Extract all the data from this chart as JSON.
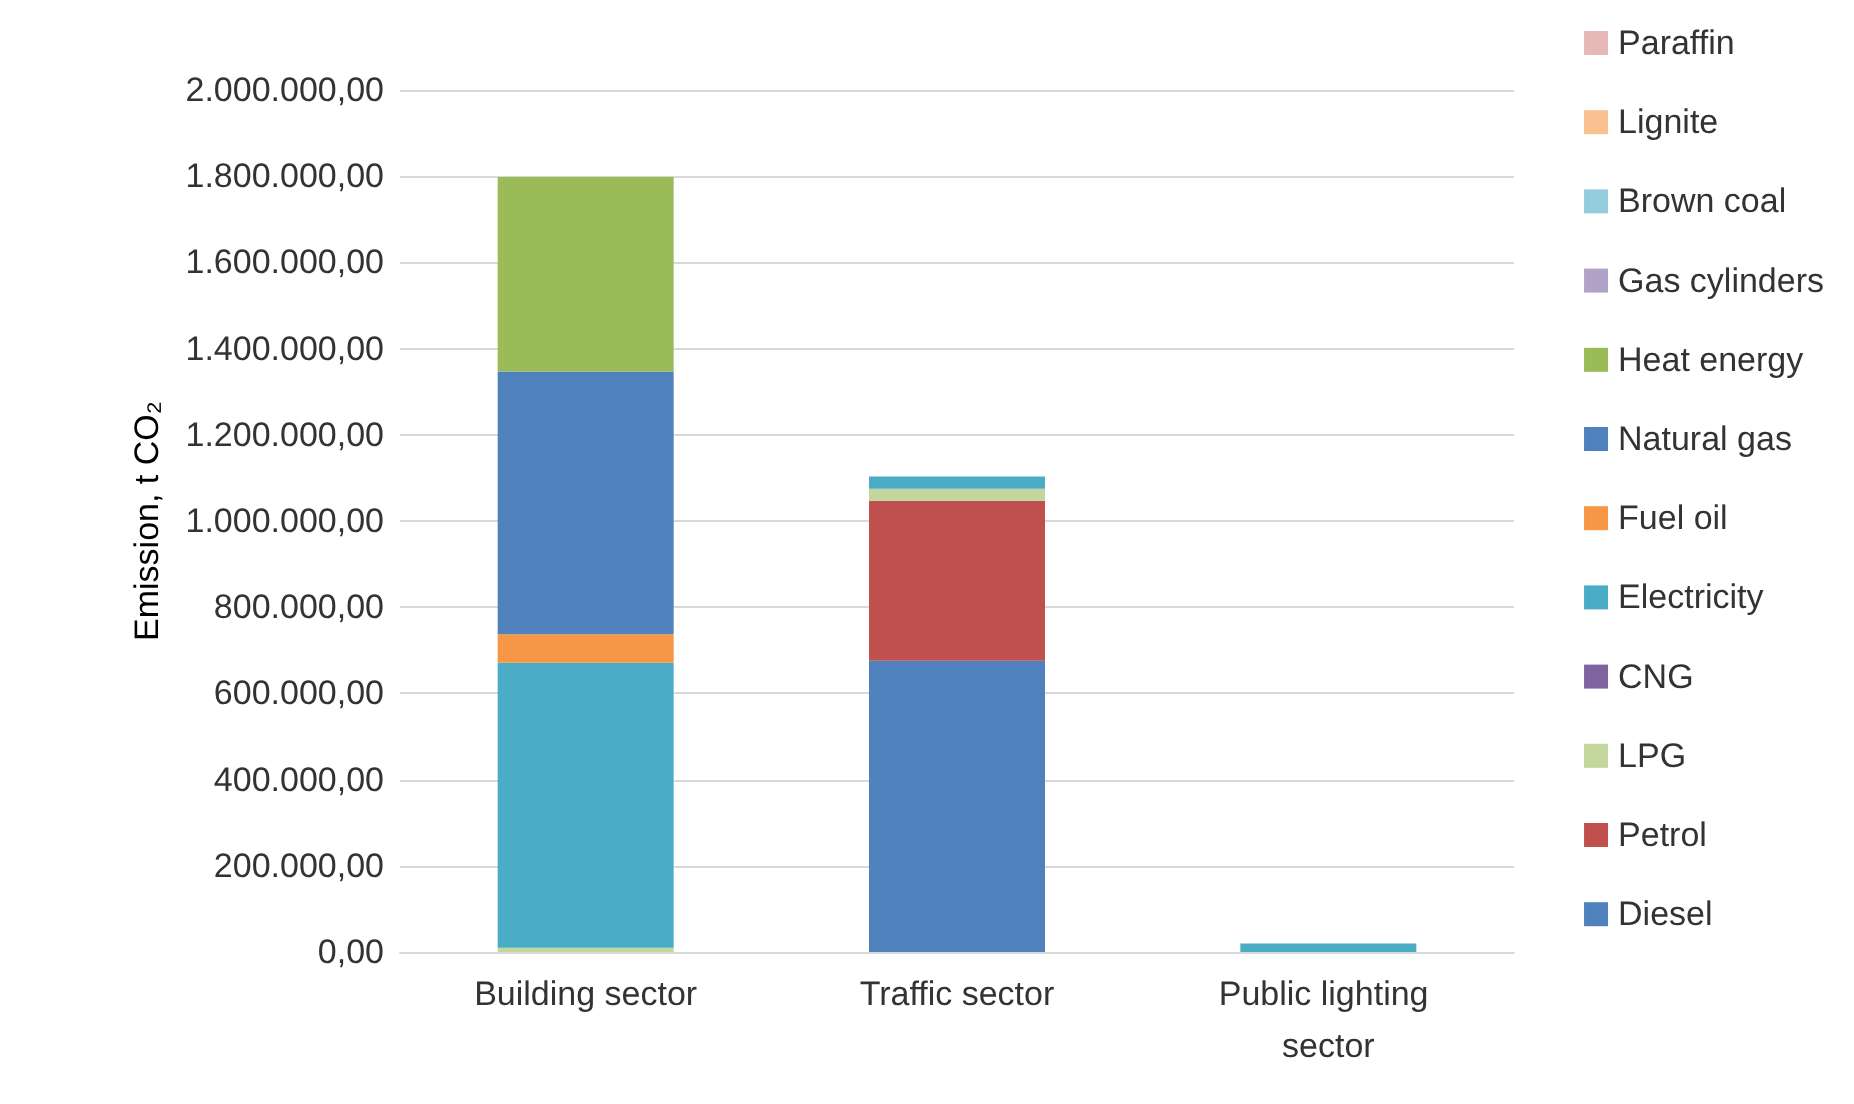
{
  "chart_data": {
    "type": "bar",
    "stacked": true,
    "ylabel": "Emission, t CO₂",
    "categories": [
      "Building sector",
      "Traffic sector",
      "Public lighting sector"
    ],
    "series": [
      {
        "name": "Diesel",
        "color": "#4f81bd",
        "values": [
          null,
          676000,
          null
        ]
      },
      {
        "name": "Petrol",
        "color": "#c0504d",
        "values": [
          null,
          371000,
          null
        ]
      },
      {
        "name": "LPG",
        "color": "#c3d69b",
        "values": [
          10000,
          28000,
          null
        ]
      },
      {
        "name": "CNG",
        "color": "#8064a2",
        "values": [
          null,
          null,
          null
        ]
      },
      {
        "name": "Electricity",
        "color": "#4bacc6",
        "values": [
          661000,
          28000,
          20000
        ]
      },
      {
        "name": "Fuel oil",
        "color": "#f79646",
        "values": [
          66000,
          null,
          null
        ]
      },
      {
        "name": "Natural gas",
        "color": "#4f81bd",
        "values": [
          610000,
          null,
          null
        ]
      },
      {
        "name": "Heat energy",
        "color": "#9bbb59",
        "values": [
          451000,
          null,
          null
        ]
      },
      {
        "name": "Gas cylinders",
        "color": "#b3a2c7",
        "values": [
          null,
          null,
          null
        ]
      },
      {
        "name": "Brown coal",
        "color": "#93cddd",
        "values": [
          null,
          null,
          null
        ]
      },
      {
        "name": "Lignite",
        "color": "#fac090",
        "values": [
          null,
          null,
          null
        ]
      },
      {
        "name": "Paraffin",
        "color": "#e6b9b8",
        "values": [
          null,
          null,
          null
        ]
      }
    ],
    "ylim": [
      0,
      2000000
    ],
    "yticks": [
      {
        "value": 0,
        "label": "0,00"
      },
      {
        "value": 200000,
        "label": "200.000,00"
      },
      {
        "value": 400000,
        "label": "400.000,00"
      },
      {
        "value": 600000,
        "label": "600.000,00"
      },
      {
        "value": 800000,
        "label": "800.000,00"
      },
      {
        "value": 1000000,
        "label": "1.000.000,00"
      },
      {
        "value": 1200000,
        "label": "1.200.000,00"
      },
      {
        "value": 1400000,
        "label": "1.400.000,00"
      },
      {
        "value": 1600000,
        "label": "1.600.000,00"
      },
      {
        "value": 1800000,
        "label": "1.800.000,00"
      },
      {
        "value": 2000000,
        "label": "2.000.000,00"
      }
    ],
    "grid": "y",
    "legend": "right"
  }
}
